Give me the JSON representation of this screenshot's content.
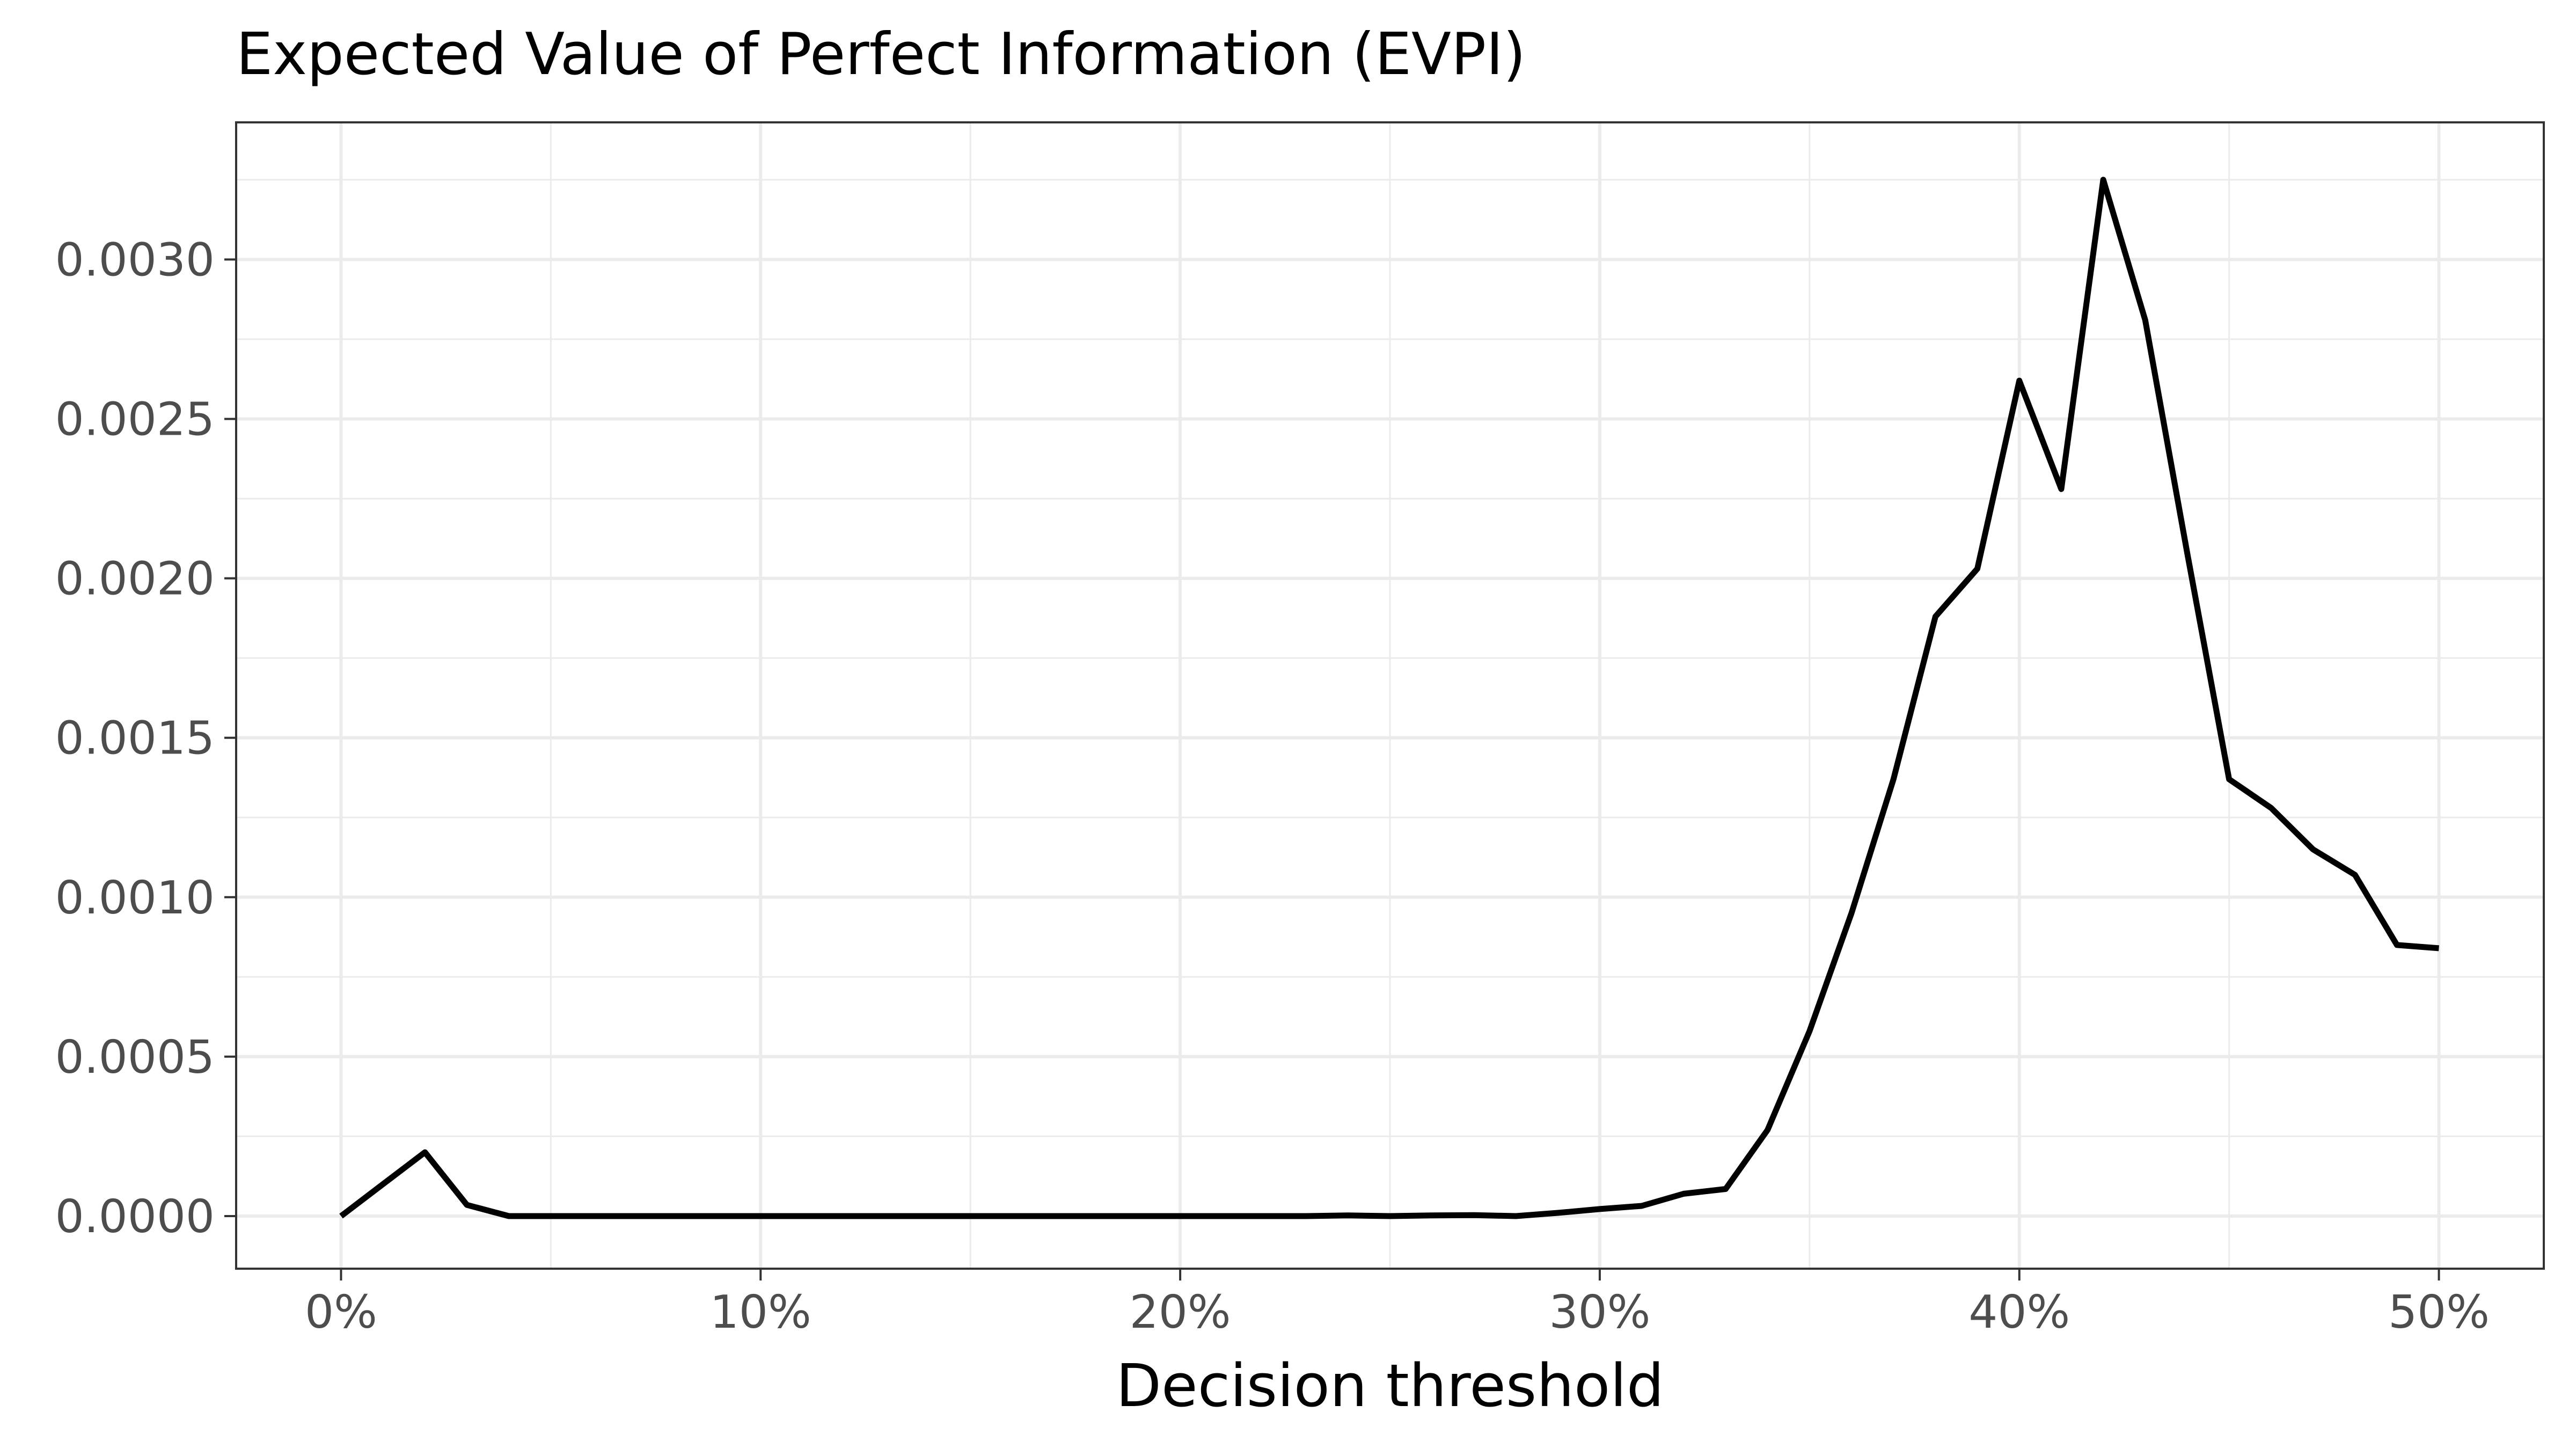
{
  "chart_data": {
    "type": "line",
    "title": "Expected Value of Perfect Information (EVPI)",
    "xlabel": "Decision threshold",
    "ylabel": "",
    "xlim": [
      -0.025,
      0.525
    ],
    "ylim": [
      -0.000165,
      0.00343
    ],
    "x_ticks": [
      0,
      0.1,
      0.2,
      0.3,
      0.4,
      0.5
    ],
    "x_tick_labels": [
      "0%",
      "10%",
      "20%",
      "30%",
      "40%",
      "50%"
    ],
    "x_minor_ticks": [
      0.05,
      0.15,
      0.25,
      0.35,
      0.45
    ],
    "y_ticks": [
      0,
      0.0005,
      0.001,
      0.0015,
      0.002,
      0.0025,
      0.003
    ],
    "y_tick_labels": [
      "0.0000",
      "0.0005",
      "0.0010",
      "0.0015",
      "0.0020",
      "0.0025",
      "0.0030"
    ],
    "y_minor_ticks": [
      0.00025,
      0.00075,
      0.00125,
      0.00175,
      0.00225,
      0.00275,
      0.00325
    ],
    "grid": true,
    "legend": "none",
    "line_color": "#000000",
    "series": [
      {
        "x": [
          0,
          0.01,
          0.02,
          0.03,
          0.04,
          0.05,
          0.06,
          0.07,
          0.08,
          0.09,
          0.1,
          0.11,
          0.12,
          0.13,
          0.14,
          0.15,
          0.16,
          0.17,
          0.18,
          0.19,
          0.2,
          0.21,
          0.22,
          0.23,
          0.24,
          0.25,
          0.26,
          0.27,
          0.28,
          0.29,
          0.3,
          0.31,
          0.32,
          0.33,
          0.34,
          0.35,
          0.36,
          0.37,
          0.38,
          0.39,
          0.4,
          0.41,
          0.42,
          0.43,
          0.44,
          0.45,
          0.46,
          0.47,
          0.48,
          0.49,
          0.5
        ],
        "values": [
          0.0,
          0.0001,
          0.0002,
          3.5e-05,
          0.0,
          0.0,
          0.0,
          0.0,
          0.0,
          0.0,
          0.0,
          0.0,
          0.0,
          0.0,
          0.0,
          0.0,
          0.0,
          0.0,
          0.0,
          0.0,
          0.0,
          0.0,
          0.0,
          0.0,
          2e-06,
          0.0,
          2e-06,
          3e-06,
          0.0,
          1e-05,
          2.2e-05,
          3.2e-05,
          7e-05,
          8.5e-05,
          0.00027,
          0.00058,
          0.00095,
          0.00137,
          0.00188,
          0.00203,
          0.00262,
          0.00228,
          0.00325,
          0.00281,
          0.00208,
          0.00137,
          0.00128,
          0.00115,
          0.00107,
          0.00085,
          0.00084
        ]
      }
    ]
  }
}
